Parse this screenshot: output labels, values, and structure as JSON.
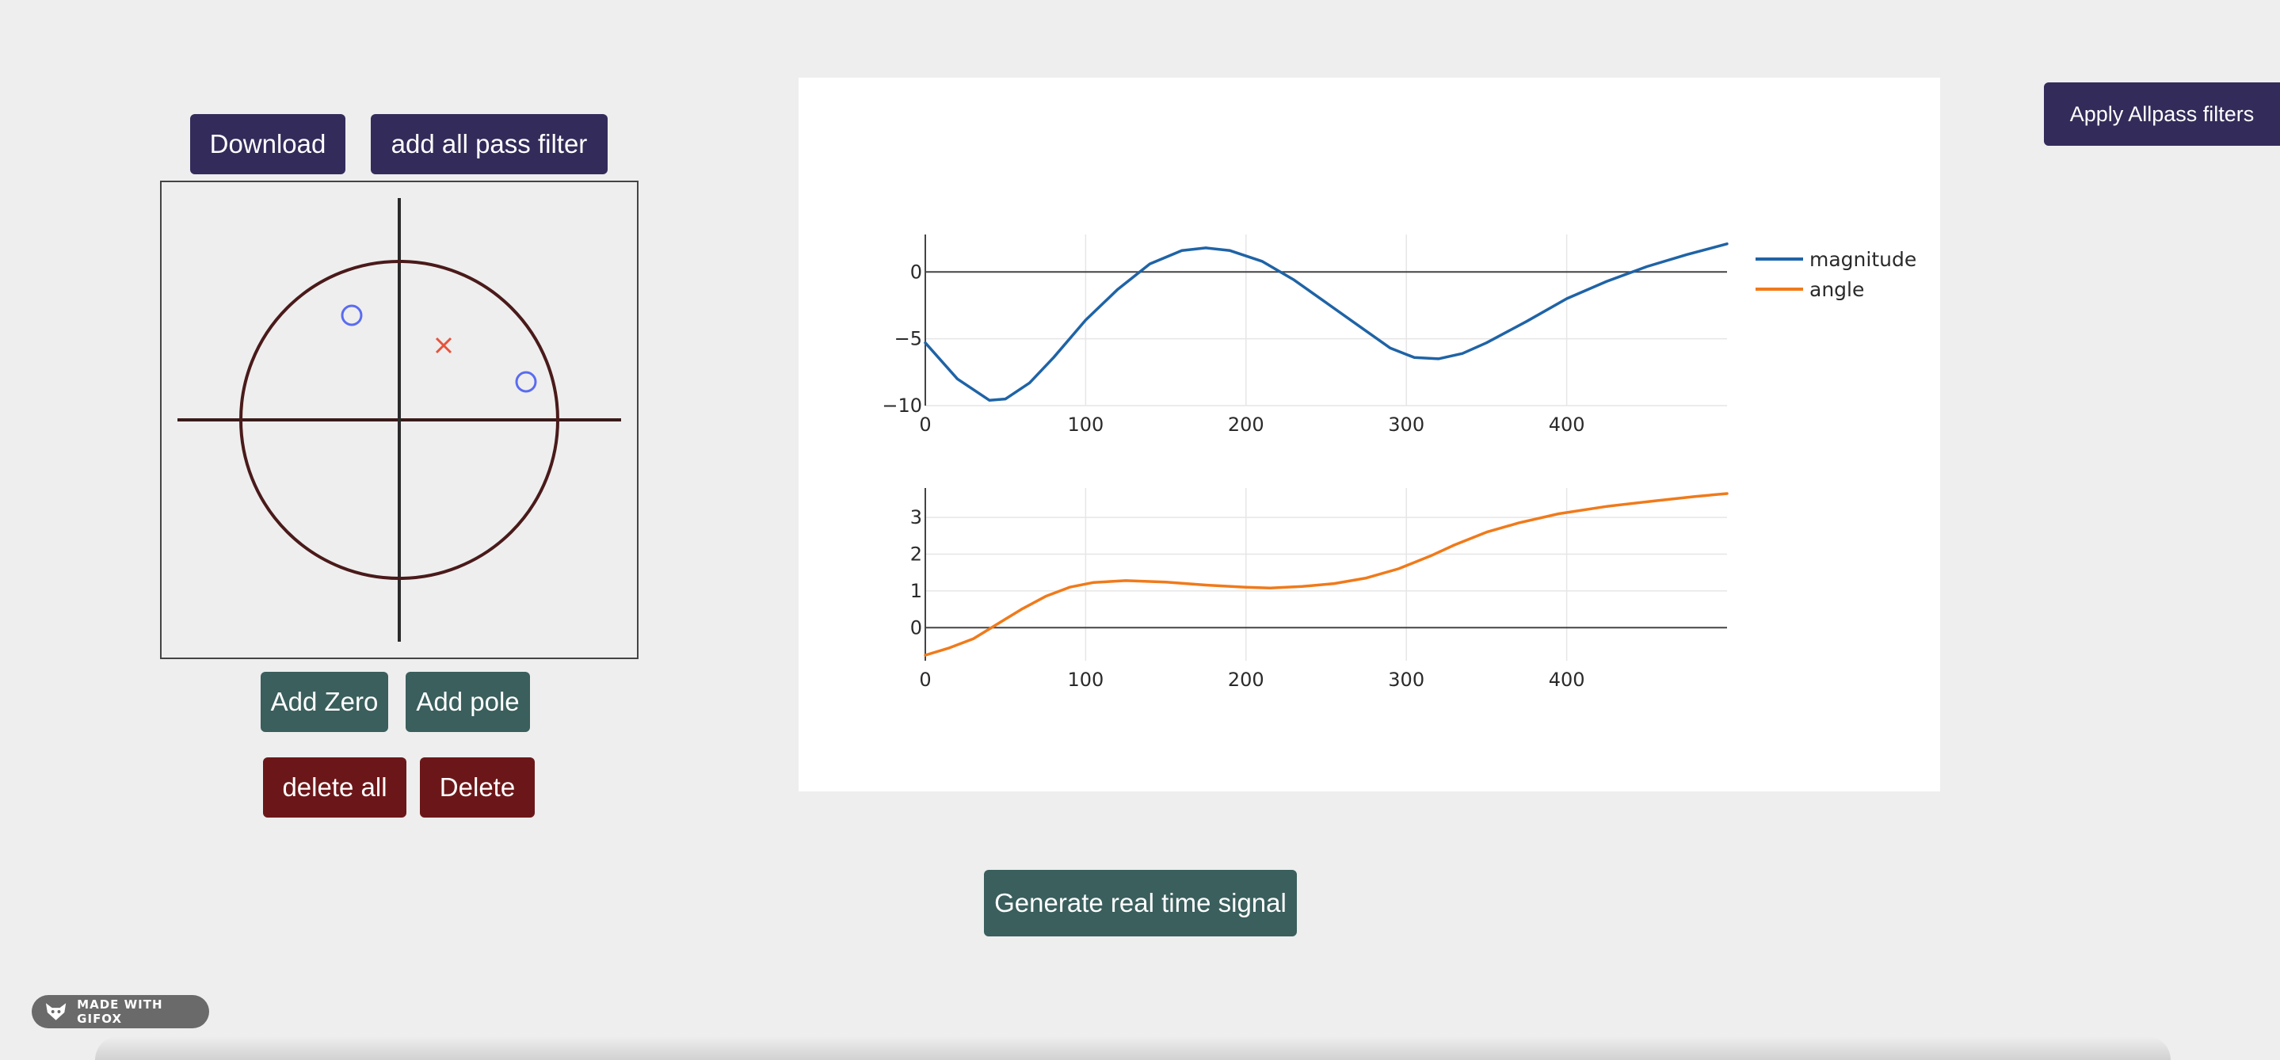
{
  "toolbar": {
    "download_label": "Download",
    "allpass_label": "add all pass filter",
    "apply_allpass_label": "Apply Allpass filters"
  },
  "zplane": {
    "zeros": [
      {
        "re": -0.3,
        "im": 0.66
      },
      {
        "re": 0.8,
        "im": 0.24
      }
    ],
    "poles": [
      {
        "re": 0.28,
        "im": 0.47
      }
    ],
    "unit_circle_color": "#4a1a1a",
    "zero_color": "#5a6cf0",
    "pole_color": "#e8533a"
  },
  "controls": {
    "add_zero_label": "Add Zero",
    "add_pole_label": "Add pole",
    "delete_all_label": "delete all",
    "delete_label": "Delete"
  },
  "generate_label": "Generate real time signal",
  "badge": {
    "label": "MADE WITH GIFOX",
    "icon": "fox-icon"
  },
  "chart_data": [
    {
      "type": "line",
      "series": [
        {
          "name": "magnitude",
          "color": "#1f63a6",
          "x": [
            0,
            20,
            40,
            50,
            65,
            80,
            100,
            120,
            140,
            160,
            175,
            190,
            210,
            230,
            250,
            270,
            290,
            305,
            320,
            335,
            350,
            375,
            400,
            425,
            450,
            475,
            500
          ],
          "y": [
            -5.3,
            -8.0,
            -9.6,
            -9.5,
            -8.3,
            -6.4,
            -3.6,
            -1.3,
            0.6,
            1.6,
            1.8,
            1.6,
            0.8,
            -0.6,
            -2.3,
            -4.0,
            -5.7,
            -6.4,
            -6.5,
            -6.1,
            -5.3,
            -3.7,
            -2.0,
            -0.7,
            0.4,
            1.3,
            2.1
          ]
        }
      ],
      "xlim": [
        0,
        500
      ],
      "ylim": [
        -10,
        2.8
      ],
      "xticks": [
        0,
        100,
        200,
        300,
        400
      ],
      "yticks": [
        0,
        -5,
        -10
      ],
      "ytick_labels": [
        "0",
        "−5",
        "−10"
      ],
      "grid": true
    },
    {
      "type": "line",
      "series": [
        {
          "name": "angle",
          "color": "#f07a1a",
          "x": [
            0,
            15,
            30,
            45,
            60,
            75,
            90,
            105,
            125,
            150,
            175,
            200,
            215,
            235,
            255,
            275,
            295,
            315,
            330,
            350,
            370,
            395,
            425,
            455,
            480,
            500
          ],
          "y": [
            -0.75,
            -0.55,
            -0.3,
            0.1,
            0.5,
            0.85,
            1.1,
            1.23,
            1.28,
            1.24,
            1.16,
            1.1,
            1.08,
            1.12,
            1.2,
            1.35,
            1.6,
            1.95,
            2.25,
            2.6,
            2.85,
            3.1,
            3.3,
            3.45,
            3.57,
            3.65
          ],
          "show_in_legend": false
        }
      ],
      "xlim": [
        0,
        500
      ],
      "ylim": [
        -0.9,
        3.8
      ],
      "xticks": [
        0,
        100,
        200,
        300,
        400
      ],
      "yticks": [
        0,
        1,
        2,
        3
      ],
      "ytick_labels": [
        "0",
        "1",
        "2",
        "3"
      ],
      "grid": true
    }
  ],
  "legend": {
    "position": "top-right",
    "items": [
      {
        "label": "magnitude",
        "color": "#1f63a6"
      },
      {
        "label": "angle",
        "color": "#f07a1a"
      }
    ]
  }
}
